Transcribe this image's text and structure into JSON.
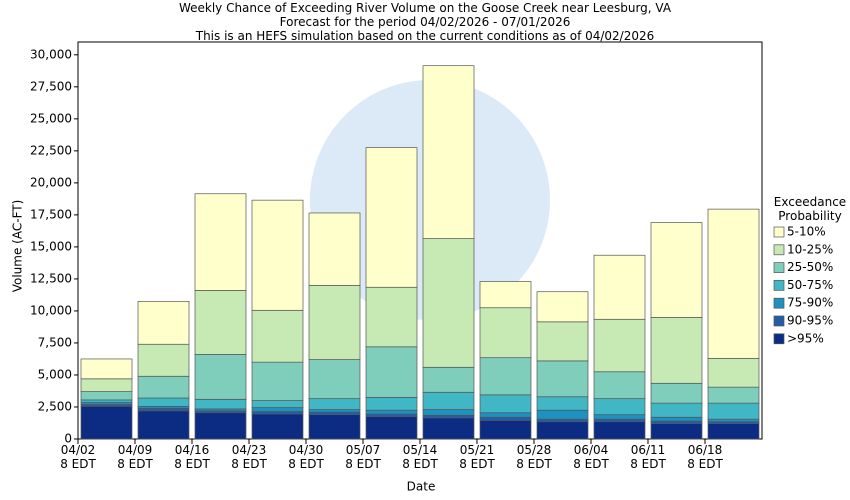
{
  "chart_data": {
    "type": "bar",
    "stacked": true,
    "title": "Weekly Chance of Exceeding River Volume on the Goose Creek near Leesburg, VA",
    "subtitle": [
      "Forecast for the period 04/02/2026 - 07/01/2026",
      "This is an HEFS simulation based on the current conditions as of 04/02/2026"
    ],
    "x_label": "Date",
    "y_label": "Volume (AC-FT)",
    "legend_title": "Exceedance\nProbability",
    "categories": [
      "04/02\n8 EDT",
      "04/09\n8 EDT",
      "04/16\n8 EDT",
      "04/23\n8 EDT",
      "04/30\n8 EDT",
      "05/07\n8 EDT",
      "05/14\n8 EDT",
      "05/21\n8 EDT",
      "05/28\n8 EDT",
      "06/04\n8 EDT",
      "06/11\n8 EDT",
      "06/18\n8 EDT"
    ],
    "series": [
      {
        "name": ">95%",
        "color": "#0c2c84",
        "values": [
          2550,
          2200,
          2050,
          1950,
          1900,
          1750,
          1650,
          1450,
          1350,
          1350,
          1200,
          1200
        ]
      },
      {
        "name": "90-95%",
        "color": "#225ea8",
        "values": [
          150,
          200,
          150,
          200,
          200,
          200,
          200,
          250,
          200,
          200,
          200,
          150
        ]
      },
      {
        "name": "75-90%",
        "color": "#1d91c0",
        "values": [
          150,
          150,
          150,
          300,
          200,
          300,
          450,
          350,
          700,
          350,
          300,
          200
        ]
      },
      {
        "name": "50-75%",
        "color": "#41b6c4",
        "values": [
          200,
          650,
          750,
          550,
          850,
          1000,
          1350,
          1400,
          1050,
          1250,
          1100,
          1250
        ]
      },
      {
        "name": "25-50%",
        "color": "#7fcdbb",
        "values": [
          650,
          1700,
          3500,
          3000,
          3050,
          3950,
          1950,
          2900,
          2800,
          2100,
          1550,
          1250
        ]
      },
      {
        "name": "10-25%",
        "color": "#c7e9b4",
        "values": [
          1000,
          2500,
          5000,
          4050,
          5800,
          4650,
          10050,
          3900,
          3050,
          4100,
          5150,
          2250
        ]
      },
      {
        "name": "5-10%",
        "color": "#ffffcc",
        "values": [
          1550,
          3350,
          7550,
          8600,
          5650,
          10900,
          13500,
          2050,
          2350,
          5000,
          7400,
          11650
        ]
      }
    ],
    "ylim": [
      0,
      31000
    ],
    "yticks": [
      0,
      {
        "value": 2500,
        "label": "2,500"
      },
      {
        "value": 5000,
        "label": "5,000"
      },
      {
        "value": 7500,
        "label": "7,500"
      },
      {
        "value": 10000,
        "label": "10,000"
      },
      {
        "value": 12500,
        "label": "12,500"
      },
      {
        "value": 15000,
        "label": "15,000"
      },
      {
        "value": 17500,
        "label": "17,500"
      },
      {
        "value": 20000,
        "label": "20,000"
      },
      {
        "value": 22500,
        "label": "22,500"
      },
      {
        "value": 25000,
        "label": "25,000"
      },
      {
        "value": 27500,
        "label": "27,500"
      },
      {
        "value": 30000,
        "label": "30,000"
      }
    ],
    "grid": false
  }
}
